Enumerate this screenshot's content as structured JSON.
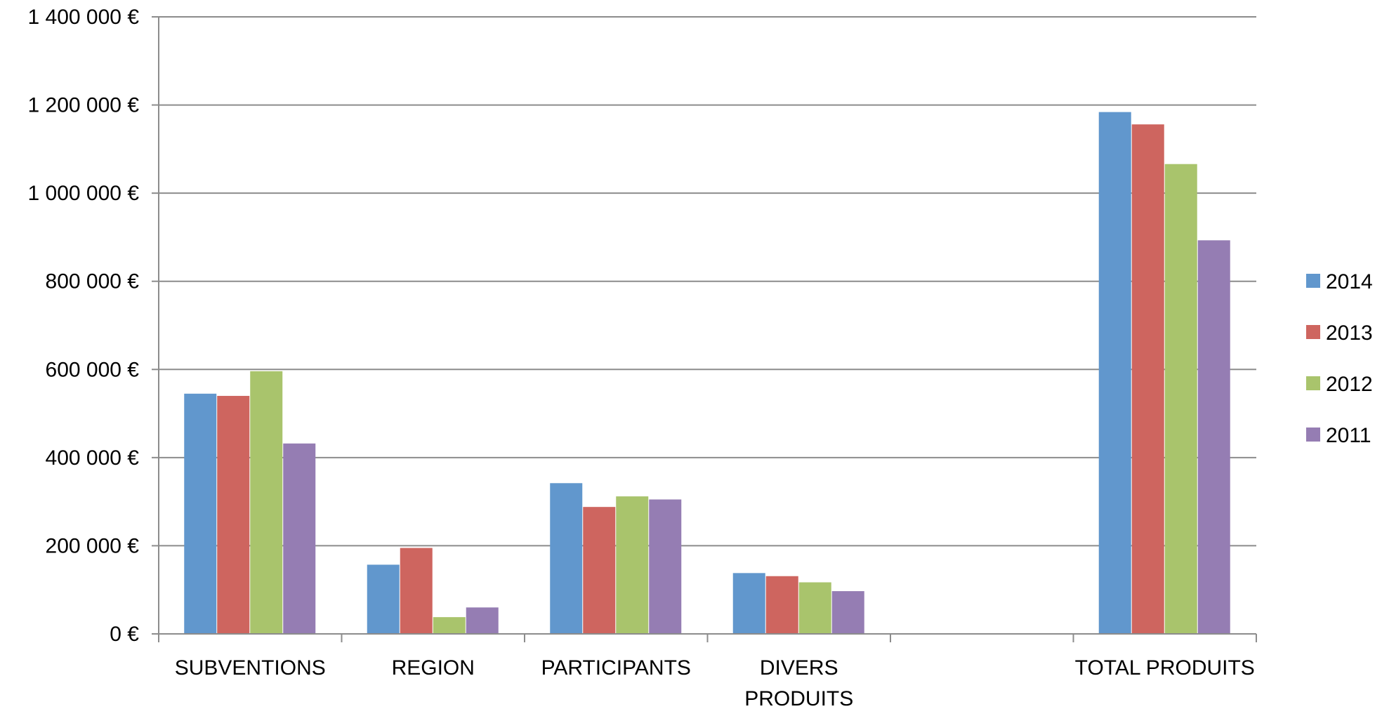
{
  "chart_data": {
    "type": "bar",
    "categories": [
      [
        "SUBVENTIONS"
      ],
      [
        "REGION"
      ],
      [
        "PARTICIPANTS"
      ],
      [
        "DIVERS",
        "PRODUITS"
      ],
      [
        ""
      ],
      [
        "TOTAL PRODUITS"
      ]
    ],
    "series": [
      {
        "name": "2014",
        "color": "#6197CD",
        "values": [
          545000,
          157000,
          342000,
          138000,
          null,
          1184000
        ]
      },
      {
        "name": "2013",
        "color": "#CE655F",
        "values": [
          540000,
          195000,
          288000,
          131000,
          null,
          1156000
        ]
      },
      {
        "name": "2012",
        "color": "#A9C46C",
        "values": [
          596000,
          38000,
          312000,
          117000,
          null,
          1066000
        ]
      },
      {
        "name": "2011",
        "color": "#957DB3",
        "values": [
          432000,
          60000,
          305000,
          97000,
          null,
          893000
        ]
      }
    ],
    "ylim": [
      0,
      1400000
    ],
    "yticks": [
      0,
      200000,
      400000,
      600000,
      800000,
      1000000,
      1200000,
      1400000
    ],
    "ytick_labels": [
      "0 €",
      "200 000 €",
      "400 000 €",
      "600 000 €",
      "800 000 €",
      "1 000 000 €",
      "1 200 000 €",
      "1 400 000 €"
    ],
    "title": "",
    "xlabel": "",
    "ylabel": "",
    "grid": true,
    "legend_position": "right"
  }
}
